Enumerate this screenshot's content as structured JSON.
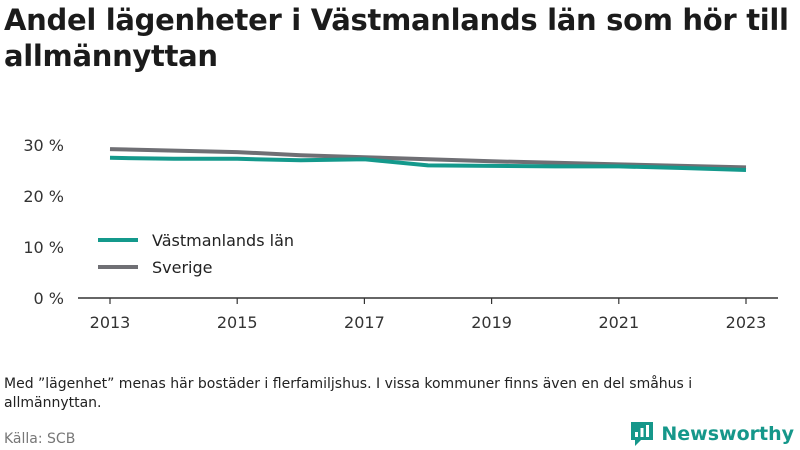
{
  "title": "Andel lägenheter i Västmanlands län som hör till allmännyttan",
  "note": "Med ”lägenhet” menas här bostäder i flerfamiljshus. I vissa kommuner finns även en del småhus i allmännyttan.",
  "source": "Källa: SCB",
  "brand": "Newsworthy",
  "colors": {
    "vastmanland": "#14998c",
    "sverige": "#6f6f74",
    "brand": "#15978a"
  },
  "chart_data": {
    "type": "line",
    "title": "Andel lägenheter i Västmanlands län som hör till allmännyttan",
    "x": [
      2013,
      2014,
      2015,
      2016,
      2017,
      2018,
      2019,
      2020,
      2021,
      2022,
      2023
    ],
    "x_ticks": [
      "2013",
      "2015",
      "2017",
      "2019",
      "2021",
      "2023"
    ],
    "y_ticks": [
      {
        "value": 0,
        "label": "0 %"
      },
      {
        "value": 10,
        "label": "10 %"
      },
      {
        "value": 20,
        "label": "20 %"
      },
      {
        "value": 30,
        "label": "30 %"
      }
    ],
    "ylim": [
      0,
      30
    ],
    "grid": false,
    "legend_position": "left",
    "series": [
      {
        "name": "Västmanlands län",
        "values": [
          27.5,
          27.3,
          27.3,
          27.0,
          27.2,
          26.0,
          25.9,
          25.8,
          25.8,
          25.5,
          25.1
        ]
      },
      {
        "name": "Sverige",
        "values": [
          29.2,
          28.9,
          28.6,
          28.0,
          27.6,
          27.2,
          26.8,
          26.5,
          26.2,
          25.9,
          25.6
        ]
      }
    ]
  }
}
